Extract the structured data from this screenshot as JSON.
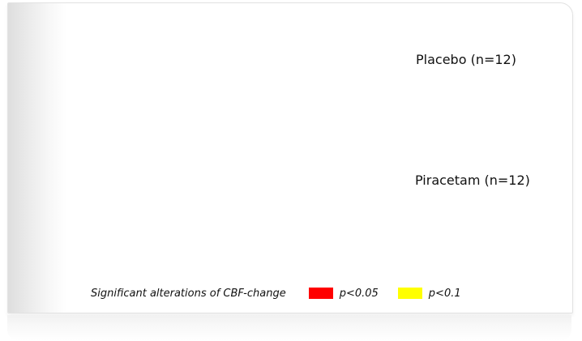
{
  "groups": [
    {
      "label": "Placebo (n=12)"
    },
    {
      "label": "Piracetam (n=12)"
    }
  ],
  "legend": {
    "title": "Significant alterations of CBF-change",
    "items": [
      {
        "label": "p<0.05",
        "color": "#ff0000"
      },
      {
        "label": "p<0.1",
        "color": "#ffff00"
      }
    ]
  }
}
